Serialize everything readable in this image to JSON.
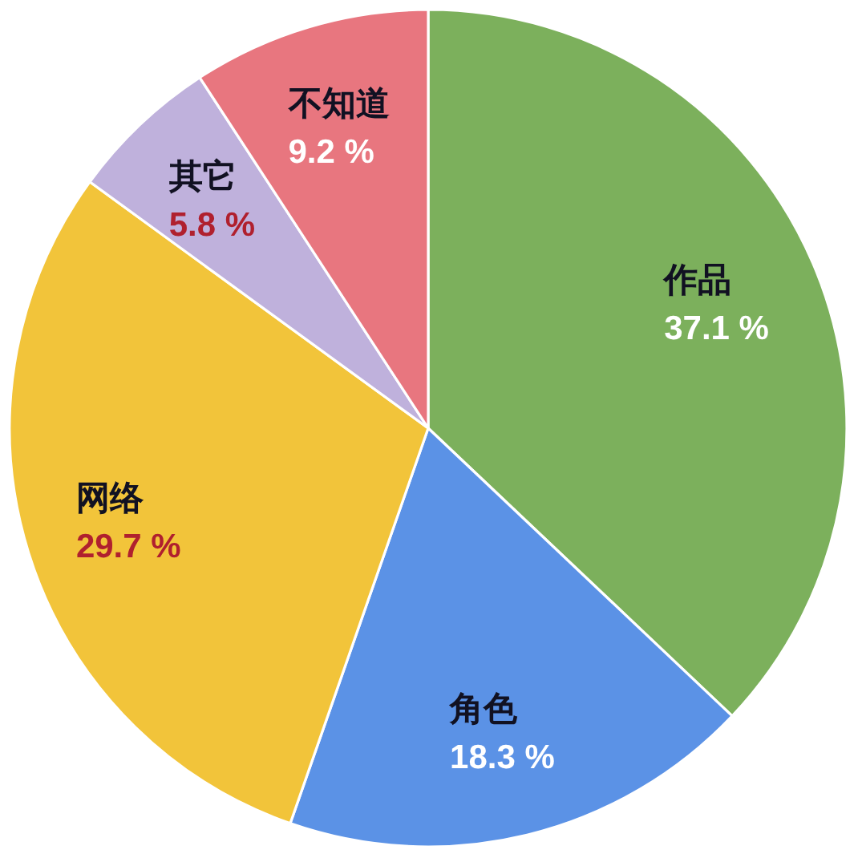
{
  "chart_data": {
    "type": "pie",
    "categories": [
      "作品",
      "角色",
      "网络",
      "其它",
      "不知道"
    ],
    "values": [
      37.1,
      18.3,
      29.7,
      5.8,
      9.2
    ],
    "colors": [
      "#7cb05c",
      "#5b92e6",
      "#f2c43a",
      "#bfb1dc",
      "#e8767f"
    ],
    "value_labels": [
      "37.1 %",
      "18.3 %",
      "29.7 %",
      "5.8 %",
      "9.2 %"
    ]
  }
}
